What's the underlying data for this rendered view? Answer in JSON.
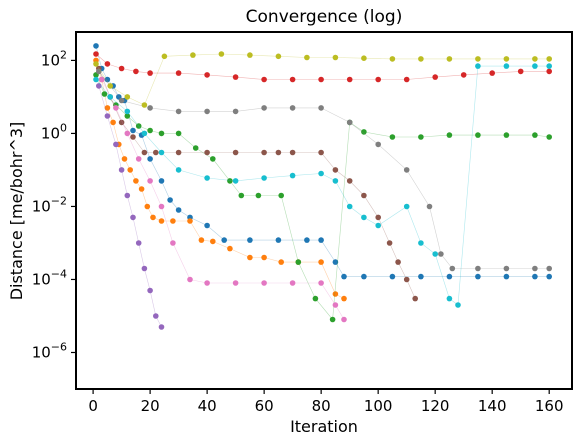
{
  "chart_data": {
    "type": "scatter",
    "title": "Convergence (log)",
    "xlabel": "Iteration",
    "ylabel": "Distance [me/bohr^3]",
    "xlim": [
      -6,
      168
    ],
    "ylim": [
      1e-07,
      600
    ],
    "yscale": "log",
    "grid": false,
    "legend": "none",
    "x_ticks": [
      {
        "value": 0,
        "label": "0"
      },
      {
        "value": 20,
        "label": "20"
      },
      {
        "value": 40,
        "label": "40"
      },
      {
        "value": 60,
        "label": "60"
      },
      {
        "value": 80,
        "label": "80"
      },
      {
        "value": 100,
        "label": "100"
      },
      {
        "value": 120,
        "label": "120"
      },
      {
        "value": 140,
        "label": "140"
      },
      {
        "value": 160,
        "label": "160"
      }
    ],
    "y_ticks": [
      {
        "value": 100,
        "base": "10",
        "exp": "2"
      },
      {
        "value": 1,
        "base": "10",
        "exp": "0"
      },
      {
        "value": 0.01,
        "base": "10",
        "exp": "−2"
      },
      {
        "value": 0.0001,
        "base": "10",
        "exp": "−4"
      },
      {
        "value": 1e-06,
        "base": "10",
        "exp": "−6"
      }
    ],
    "series": [
      {
        "color": "#1f77b4",
        "points": [
          [
            1,
            250
          ],
          [
            3,
            60
          ],
          [
            5,
            30
          ],
          [
            7,
            20
          ],
          [
            9,
            10
          ],
          [
            11,
            8
          ],
          [
            14,
            1.2
          ],
          [
            17,
            0.9
          ],
          [
            20,
            0.2
          ],
          [
            24,
            0.05
          ],
          [
            27,
            0.015
          ],
          [
            30,
            0.008
          ],
          [
            34,
            0.005
          ],
          [
            40,
            0.003
          ],
          [
            46,
            0.0012
          ],
          [
            55,
            0.0012
          ],
          [
            65,
            0.0012
          ],
          [
            75,
            0.0012
          ],
          [
            80,
            0.0012
          ],
          [
            85,
            0.0003
          ],
          [
            88,
            0.00012
          ],
          [
            95,
            0.00012
          ],
          [
            105,
            0.00012
          ],
          [
            115,
            0.00012
          ],
          [
            125,
            0.00012
          ],
          [
            135,
            0.00012
          ],
          [
            145,
            0.00012
          ],
          [
            155,
            0.00012
          ],
          [
            160,
            0.00012
          ]
        ]
      },
      {
        "color": "#ff7f0e",
        "points": [
          [
            1,
            100
          ],
          [
            3,
            30
          ],
          [
            5,
            5
          ],
          [
            7,
            2
          ],
          [
            9,
            0.5
          ],
          [
            11,
            0.2
          ],
          [
            13,
            0.1
          ],
          [
            15,
            0.05
          ],
          [
            17,
            0.03
          ],
          [
            19,
            0.01
          ],
          [
            21,
            0.005
          ],
          [
            24,
            0.004
          ],
          [
            28,
            0.004
          ],
          [
            34,
            0.004
          ],
          [
            38,
            0.0012
          ],
          [
            42,
            0.0011
          ],
          [
            48,
            0.0007
          ],
          [
            55,
            0.0004
          ],
          [
            60,
            0.0004
          ],
          [
            66,
            0.0003
          ],
          [
            72,
            0.0003
          ],
          [
            80,
            0.0003
          ],
          [
            85,
            4e-05
          ],
          [
            88,
            3e-05
          ]
        ]
      },
      {
        "color": "#2ca02c",
        "points": [
          [
            1,
            40
          ],
          [
            4,
            12
          ],
          [
            8,
            6
          ],
          [
            12,
            3
          ],
          [
            16,
            1.6
          ],
          [
            20,
            1.2
          ],
          [
            24,
            1.0
          ],
          [
            30,
            1.0
          ],
          [
            36,
            0.4
          ],
          [
            42,
            0.2
          ],
          [
            48,
            0.05
          ],
          [
            52,
            0.02
          ],
          [
            58,
            0.02
          ],
          [
            66,
            0.02
          ],
          [
            72,
            0.0003
          ],
          [
            78,
            3e-05
          ],
          [
            84,
            8e-06
          ],
          [
            90,
            2
          ],
          [
            95,
            1.1
          ],
          [
            105,
            0.8
          ],
          [
            115,
            0.8
          ],
          [
            125,
            0.9
          ],
          [
            135,
            0.9
          ],
          [
            145,
            0.9
          ],
          [
            155,
            0.9
          ],
          [
            160,
            0.8
          ]
        ]
      },
      {
        "color": "#d62728",
        "points": [
          [
            1,
            150
          ],
          [
            5,
            80
          ],
          [
            10,
            60
          ],
          [
            15,
            50
          ],
          [
            20,
            45
          ],
          [
            30,
            45
          ],
          [
            40,
            40
          ],
          [
            50,
            35
          ],
          [
            60,
            30
          ],
          [
            70,
            30
          ],
          [
            80,
            30
          ],
          [
            90,
            30
          ],
          [
            100,
            30
          ],
          [
            110,
            30
          ],
          [
            120,
            35
          ],
          [
            130,
            40
          ],
          [
            140,
            45
          ],
          [
            150,
            50
          ],
          [
            160,
            50
          ]
        ]
      },
      {
        "color": "#9467bd",
        "points": [
          [
            2,
            20
          ],
          [
            5,
            3
          ],
          [
            8,
            0.5
          ],
          [
            10,
            0.1
          ],
          [
            12,
            0.02
          ],
          [
            14,
            0.005
          ],
          [
            16,
            0.001
          ],
          [
            18,
            0.0002
          ],
          [
            20,
            5e-05
          ],
          [
            22,
            1e-05
          ],
          [
            24,
            5e-06
          ]
        ]
      },
      {
        "color": "#8c564b",
        "points": [
          [
            2,
            60
          ],
          [
            6,
            10
          ],
          [
            10,
            2
          ],
          [
            14,
            0.8
          ],
          [
            18,
            0.3
          ],
          [
            22,
            0.3
          ],
          [
            30,
            0.3
          ],
          [
            40,
            0.3
          ],
          [
            50,
            0.3
          ],
          [
            60,
            0.3
          ],
          [
            65,
            0.3
          ],
          [
            70,
            0.3
          ],
          [
            80,
            0.3
          ],
          [
            85,
            0.1
          ],
          [
            90,
            0.05
          ],
          [
            95,
            0.02
          ],
          [
            100,
            0.005
          ],
          [
            104,
            0.001
          ],
          [
            107,
            0.0003
          ],
          [
            110,
            0.0001
          ],
          [
            113,
            3e-05
          ]
        ]
      },
      {
        "color": "#e377c2",
        "points": [
          [
            3,
            30
          ],
          [
            8,
            5
          ],
          [
            12,
            1
          ],
          [
            16,
            0.2
          ],
          [
            20,
            0.05
          ],
          [
            24,
            0.01
          ],
          [
            28,
            0.001
          ],
          [
            34,
            0.0001
          ],
          [
            40,
            8e-05
          ],
          [
            50,
            8e-05
          ],
          [
            60,
            8e-05
          ],
          [
            70,
            8e-05
          ],
          [
            80,
            8e-05
          ],
          [
            85,
            2e-05
          ],
          [
            88,
            8e-06
          ]
        ]
      },
      {
        "color": "#7f7f7f",
        "points": [
          [
            2,
            50
          ],
          [
            10,
            8
          ],
          [
            20,
            5
          ],
          [
            30,
            4
          ],
          [
            40,
            4
          ],
          [
            50,
            4
          ],
          [
            60,
            5
          ],
          [
            70,
            5
          ],
          [
            80,
            5
          ],
          [
            90,
            2
          ],
          [
            100,
            0.5
          ],
          [
            110,
            0.1
          ],
          [
            118,
            0.01
          ],
          [
            122,
            0.0005
          ],
          [
            126,
            0.0002
          ],
          [
            135,
            0.0002
          ],
          [
            145,
            0.0002
          ],
          [
            155,
            0.0002
          ],
          [
            160,
            0.0002
          ]
        ]
      },
      {
        "color": "#bcbd22",
        "points": [
          [
            1,
            80
          ],
          [
            6,
            20
          ],
          [
            12,
            10
          ],
          [
            18,
            6
          ],
          [
            25,
            130
          ],
          [
            35,
            140
          ],
          [
            45,
            150
          ],
          [
            55,
            140
          ],
          [
            65,
            130
          ],
          [
            75,
            120
          ],
          [
            85,
            120
          ],
          [
            95,
            115
          ],
          [
            105,
            110
          ],
          [
            115,
            110
          ],
          [
            125,
            110
          ],
          [
            135,
            110
          ],
          [
            145,
            110
          ],
          [
            155,
            110
          ],
          [
            160,
            110
          ]
        ]
      },
      {
        "color": "#17becf",
        "points": [
          [
            1,
            30
          ],
          [
            6,
            10
          ],
          [
            12,
            4
          ],
          [
            18,
            1
          ],
          [
            24,
            0.3
          ],
          [
            30,
            0.1
          ],
          [
            40,
            0.06
          ],
          [
            50,
            0.05
          ],
          [
            60,
            0.06
          ],
          [
            70,
            0.07
          ],
          [
            80,
            0.08
          ],
          [
            85,
            0.05
          ],
          [
            90,
            0.01
          ],
          [
            95,
            0.005
          ],
          [
            100,
            0.003
          ],
          [
            110,
            0.01
          ],
          [
            115,
            0.001
          ],
          [
            120,
            0.0005
          ],
          [
            125,
            3e-05
          ],
          [
            128,
            2e-05
          ],
          [
            135,
            70
          ],
          [
            145,
            70
          ],
          [
            155,
            70
          ],
          [
            160,
            70
          ]
        ]
      }
    ]
  }
}
